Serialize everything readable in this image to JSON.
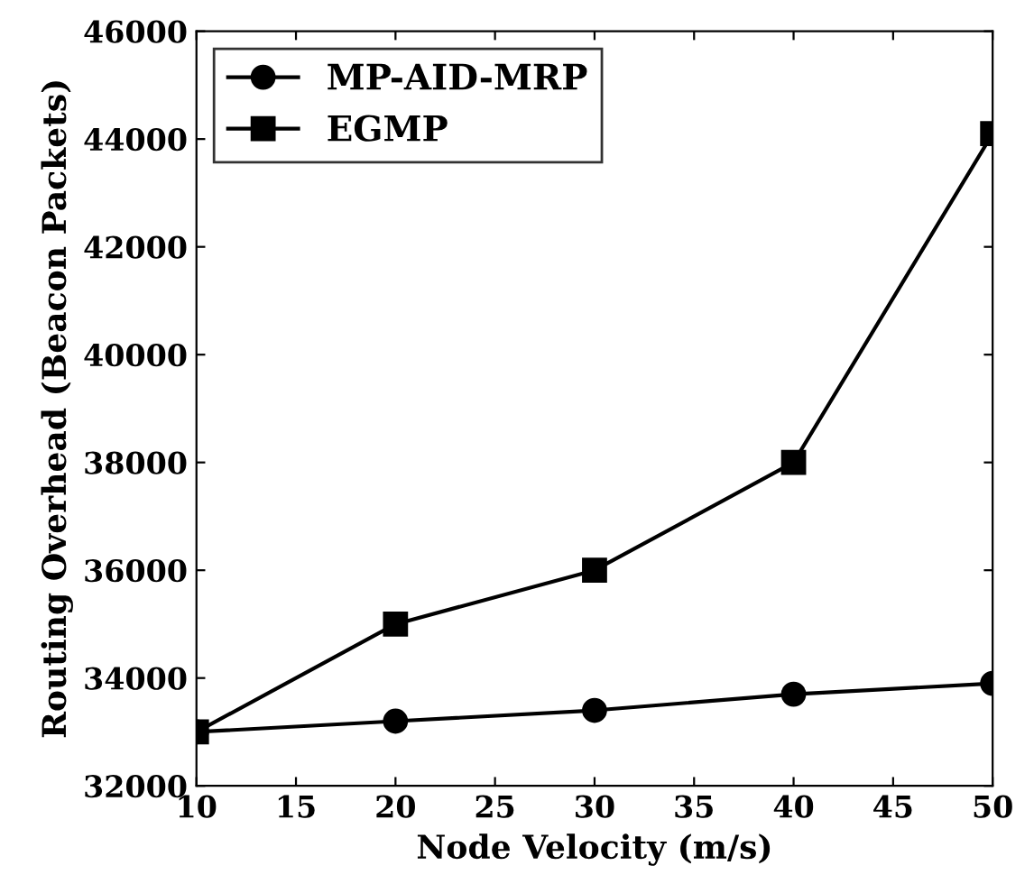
{
  "chart_data": {
    "type": "line",
    "xlabel": "Node Velocity (m/s)",
    "ylabel": "Routing Overhead (Beacon Packets)",
    "x": [
      10,
      20,
      30,
      40,
      50
    ],
    "series": [
      {
        "name": "MP-AID-MRP",
        "color": "#000000",
        "marker": "circle",
        "values": [
          33000,
          33200,
          33400,
          33700,
          33900
        ]
      },
      {
        "name": "EGMP",
        "color": "#000000",
        "marker": "square",
        "values": [
          33000,
          35000,
          36000,
          38000,
          44100
        ]
      }
    ],
    "xlim": [
      10,
      50
    ],
    "xticks": [
      10,
      15,
      20,
      25,
      30,
      35,
      40,
      45,
      50
    ],
    "ylim": [
      32000,
      46000
    ],
    "yticks": [
      32000,
      34000,
      36000,
      38000,
      40000,
      42000,
      44000,
      46000
    ],
    "grid": false,
    "legend": "top left",
    "line_style": "solid"
  }
}
